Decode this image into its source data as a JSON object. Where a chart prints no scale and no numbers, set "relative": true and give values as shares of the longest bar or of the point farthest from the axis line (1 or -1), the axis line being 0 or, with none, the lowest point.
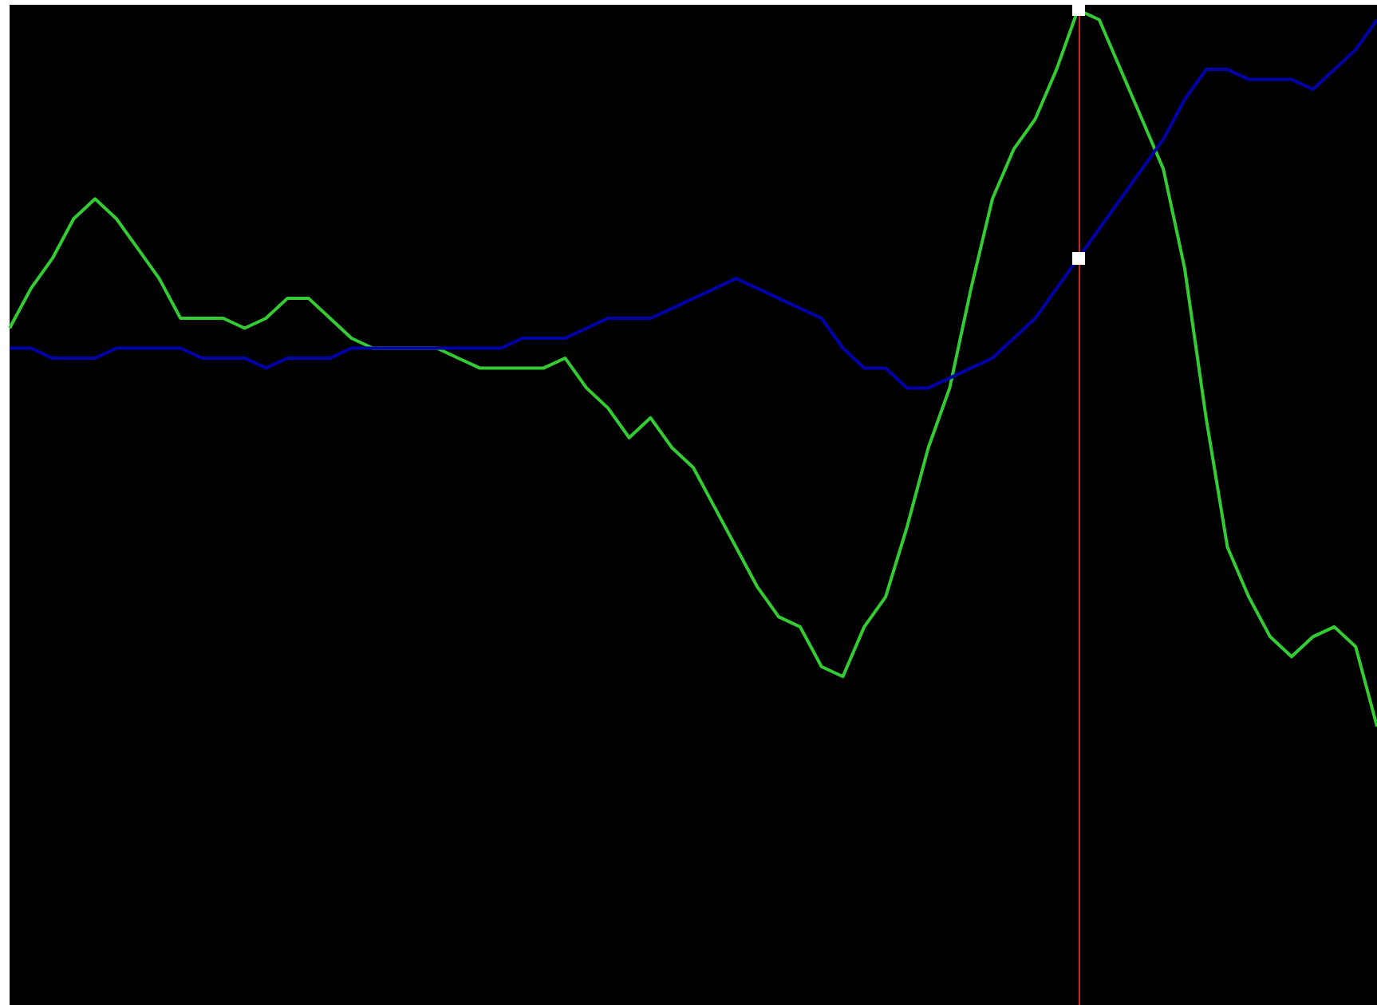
{
  "chart_data": {
    "type": "line",
    "relative": true,
    "grid": false,
    "line_style": "solid",
    "categories": [
      null,
      null,
      null,
      null,
      null,
      null,
      null,
      null,
      null,
      null,
      null,
      null,
      null,
      null,
      null,
      null,
      null,
      null,
      null,
      null,
      null,
      null,
      null,
      null,
      null,
      null,
      null,
      null,
      null,
      null,
      null,
      null,
      null,
      null,
      null,
      null,
      null,
      null,
      null,
      null,
      null,
      null,
      null,
      null,
      null,
      null,
      null,
      null,
      null,
      null,
      null,
      null,
      null,
      null,
      null,
      null,
      null,
      null,
      null,
      null,
      null,
      null,
      null,
      null,
      null
    ],
    "series": [
      {
        "color": "#33cc33",
        "values": [
          0.68,
          0.72,
          0.75,
          0.79,
          0.81,
          0.79,
          0.76,
          0.73,
          0.69,
          0.69,
          0.69,
          0.68,
          0.69,
          0.71,
          0.71,
          0.69,
          0.67,
          0.66,
          0.66,
          0.66,
          0.66,
          0.65,
          0.64,
          0.64,
          0.64,
          0.64,
          0.65,
          0.62,
          0.6,
          0.57,
          0.59,
          0.56,
          0.54,
          0.5,
          0.46,
          0.42,
          0.39,
          0.38,
          0.34,
          0.33,
          0.38,
          0.41,
          0.48,
          0.56,
          0.62,
          0.72,
          0.81,
          0.86,
          0.89,
          0.94,
          1,
          0.99,
          0.94,
          0.89,
          0.84,
          0.74,
          0.59,
          0.46,
          0.41,
          0.37,
          0.35,
          0.37,
          0.38,
          0.36,
          0.28
        ]
      },
      {
        "color": "#0000aa",
        "values": [
          0.66,
          0.66,
          0.65,
          0.65,
          0.65,
          0.66,
          0.66,
          0.66,
          0.66,
          0.65,
          0.65,
          0.65,
          0.64,
          0.65,
          0.65,
          0.65,
          0.66,
          0.66,
          0.66,
          0.66,
          0.66,
          0.66,
          0.66,
          0.66,
          0.67,
          0.67,
          0.67,
          0.68,
          0.69,
          0.69,
          0.69,
          0.7,
          0.71,
          0.72,
          0.73,
          0.72,
          0.71,
          0.7,
          0.69,
          0.66,
          0.64,
          0.64,
          0.62,
          0.62,
          0.63,
          0.64,
          0.65,
          0.67,
          0.69,
          0.72,
          0.75,
          0.78,
          0.81,
          0.84,
          0.87,
          0.91,
          0.94,
          0.94,
          0.93,
          0.93,
          0.93,
          0.92,
          0.94,
          0.96,
          0.99
        ]
      }
    ]
  }
}
